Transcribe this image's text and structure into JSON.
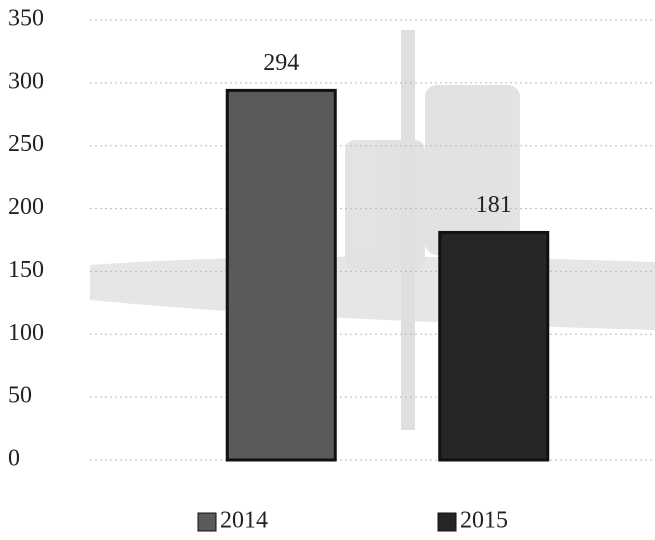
{
  "chart_data": {
    "type": "bar",
    "categories": [
      null
    ],
    "series": [
      {
        "name": "2014",
        "color": "#5a5a5a",
        "values": [
          294
        ]
      },
      {
        "name": "2015",
        "color": "#262626",
        "values": [
          181
        ]
      }
    ],
    "ylim": [
      0,
      350
    ],
    "yticks": [
      0,
      50,
      100,
      150,
      200,
      250,
      300,
      350
    ],
    "grid": true,
    "legend": "bottom"
  }
}
